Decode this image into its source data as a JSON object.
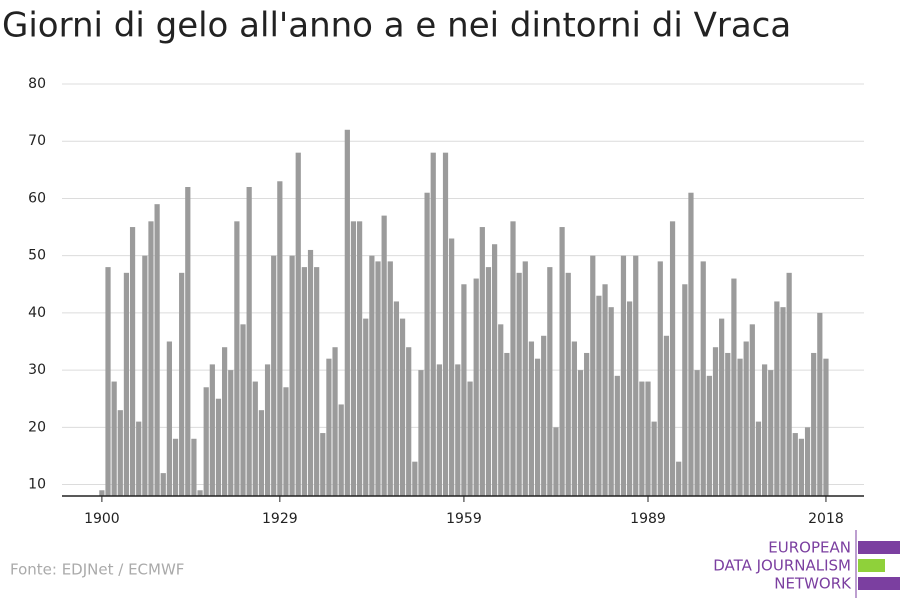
{
  "chart_data": {
    "type": "bar",
    "title": "Giorni di gelo all'anno a e nei dintorni di Vraca",
    "source": "Fonte: EDJNet / ECMWF",
    "logo": [
      "EUROPEAN",
      "DATA JOURNALISM",
      "NETWORK"
    ],
    "color": "#9b9b9b",
    "x": [
      1900,
      1901,
      1902,
      1903,
      1904,
      1905,
      1906,
      1907,
      1908,
      1909,
      1910,
      1911,
      1912,
      1913,
      1914,
      1915,
      1916,
      1917,
      1918,
      1919,
      1920,
      1921,
      1922,
      1923,
      1924,
      1925,
      1926,
      1927,
      1928,
      1929,
      1930,
      1931,
      1932,
      1933,
      1934,
      1935,
      1936,
      1937,
      1938,
      1939,
      1940,
      1941,
      1942,
      1943,
      1944,
      1945,
      1946,
      1947,
      1948,
      1949,
      1950,
      1951,
      1952,
      1953,
      1954,
      1955,
      1956,
      1957,
      1958,
      1959,
      1960,
      1961,
      1962,
      1963,
      1964,
      1965,
      1966,
      1967,
      1968,
      1969,
      1970,
      1971,
      1972,
      1973,
      1974,
      1975,
      1976,
      1977,
      1978,
      1979,
      1980,
      1981,
      1982,
      1983,
      1984,
      1985,
      1986,
      1987,
      1988,
      1989,
      1990,
      1991,
      1992,
      1993,
      1994,
      1995,
      1996,
      1997,
      1998,
      1999,
      2000,
      2001,
      2002,
      2003,
      2004,
      2005,
      2006,
      2007,
      2008,
      2009,
      2010,
      2011,
      2012,
      2013,
      2014,
      2015,
      2016,
      2017,
      2018
    ],
    "values": [
      9,
      48,
      28,
      23,
      47,
      55,
      21,
      50,
      56,
      59,
      12,
      35,
      18,
      47,
      62,
      18,
      9,
      27,
      31,
      25,
      34,
      30,
      56,
      38,
      62,
      28,
      23,
      31,
      50,
      63,
      27,
      50,
      68,
      48,
      51,
      48,
      19,
      32,
      34,
      24,
      72,
      56,
      56,
      39,
      50,
      49,
      57,
      49,
      42,
      39,
      34,
      14,
      30,
      61,
      68,
      31,
      68,
      53,
      31,
      45,
      28,
      46,
      55,
      48,
      52,
      38,
      33,
      56,
      47,
      49,
      35,
      32,
      36,
      48,
      20,
      55,
      47,
      35,
      30,
      33,
      50,
      43,
      45,
      41,
      29,
      50,
      42,
      50,
      28,
      28,
      21,
      49,
      36,
      56,
      14,
      45,
      61,
      30,
      49,
      29,
      34,
      39,
      33,
      46,
      32,
      35,
      38,
      21,
      31,
      30,
      42,
      41,
      47,
      19,
      18,
      20,
      33,
      40,
      32
    ],
    "xlim": [
      1893.5,
      2024.2
    ],
    "xticks": [
      1900,
      1929,
      1959,
      1989,
      2018
    ],
    "ylim": [
      8,
      80
    ],
    "yticks": [
      10,
      20,
      30,
      40,
      50,
      60,
      70,
      80
    ],
    "grid": true
  }
}
